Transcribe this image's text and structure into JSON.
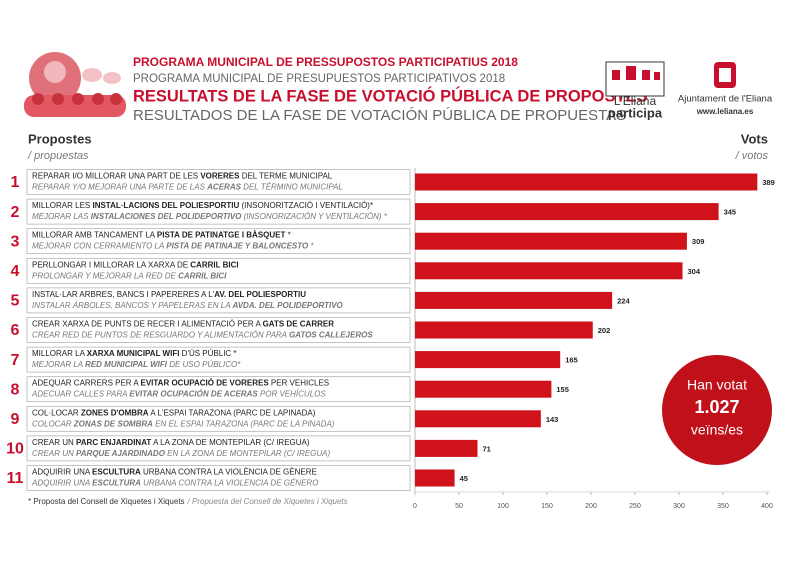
{
  "header": {
    "titles": [
      "PROGRAMA MUNICIPAL DE PRESSUPOSTOS PARTICIPATIUS 2018",
      "PROGRAMA MUNICIPAL DE PRESUPUESTOS PARTICIPATIVOS 2018",
      "RESULTATS DE LA FASE DE VOTACIÓ PÚBLICA DE PROPOSTES",
      "RESULTADOS DE LA FASE DE VOTACIÓN PÚBLICA DE PROPUESTAS"
    ],
    "logos": {
      "participa": [
        "L'Eliana",
        "participa"
      ],
      "ajuntament": "Ajuntament de l'Eliana",
      "web": "www.leliana.es"
    }
  },
  "columns": {
    "proposals": "Propostes",
    "proposals_es": "/ propuestas",
    "votes": "Vots",
    "votes_es": "/ votos"
  },
  "proposals": [
    {
      "number": 1,
      "ca": [
        "REPARAR I/O MILLORAR UNA PART DE LES ",
        "VORERES",
        " DEL TERME MUNICIPAL"
      ],
      "es": [
        "REPARAR Y/O MEJORAR UNA PARTE DE LAS ",
        "ACERAS",
        " DEL TÉRMINO MUNICIPAL"
      ]
    },
    {
      "number": 2,
      "ca": [
        "MILLORAR LES ",
        "INSTAL·LACIONS DEL POLIESPORTIU",
        " (INSONORITZACIÓ I VENTILACIÓ)*"
      ],
      "es": [
        "MEJORAR LAS ",
        "INSTALACIONES DEL POLIDEPORTIVO",
        " (INSONORIZACIÓN Y VENTILACIÓN) *"
      ]
    },
    {
      "number": 3,
      "ca": [
        "MILLORAR AMB TANCAMENT LA ",
        "PISTA DE PATINATGE I BÀSQUET",
        " *"
      ],
      "es": [
        "MEJORAR CON CERRAMIENTO LA ",
        "PISTA DE PATINAJE Y BALONCESTO",
        " *"
      ]
    },
    {
      "number": 4,
      "ca": [
        "PERLLONGAR I MILLORAR LA XARXA DE ",
        "CARRIL BICI"
      ],
      "es": [
        "PROLONGAR Y MEJORAR LA RED DE ",
        "CARRIL BICI"
      ]
    },
    {
      "number": 5,
      "ca": [
        "INSTAL·LAR ARBRES, BANCS I PAPERERES A L'",
        "AV. DEL POLIESPORTIU"
      ],
      "es": [
        "INSTALAR ÁRBOLES, BANCOS Y PAPELERAS EN LA ",
        "AVDA. DEL POLIDEPORTIVO"
      ]
    },
    {
      "number": 6,
      "ca": [
        "CREAR XARXA DE PUNTS DE RECER I ALIMENTACIÓ PER A ",
        "GATS DE CARRER"
      ],
      "es": [
        "CREAR RED DE PUNTOS DE RESGUARDO Y ALIMENTACIÓN PARA ",
        "GATOS CALLEJEROS"
      ]
    },
    {
      "number": 7,
      "ca": [
        "MILLORAR LA ",
        "XARXA MUNICIPAL WIFI",
        " D'ÚS PÚBLIC *"
      ],
      "es": [
        "MEJORAR LA ",
        "RED MUNICIPAL WIFI",
        " DE USO PÚBLICO*"
      ]
    },
    {
      "number": 8,
      "ca": [
        "ADEQUAR CARRERS PER A ",
        "EVITAR OCUPACIÓ DE VORERES",
        " PER VEHICLES"
      ],
      "es": [
        "ADECUAR CALLES PARA ",
        "EVITAR OCUPACIÓN DE ACERAS",
        " POR VEHÍCULOS"
      ]
    },
    {
      "number": 9,
      "ca": [
        "COL·LOCAR ",
        "ZONES D'OMBRA",
        " A L'ESPAI TARAZONA (PARC DE LAPINADA)"
      ],
      "es": [
        "COLOCAR ",
        "ZONAS DE SOMBRA",
        " EN EL ESPAI TARAZONA (PARC DE LA PINADA)"
      ]
    },
    {
      "number": 10,
      "ca": [
        "CREAR UN ",
        "PARC ENJARDINAT",
        " A LA ZONA DE MONTEPILAR (C/ IREGUA)"
      ],
      "es": [
        "CREAR UN ",
        "PARQUE AJARDINADO",
        " EN LA ZONA DE MONTEPILAR (C/ IREGUA)"
      ]
    },
    {
      "number": 11,
      "ca": [
        "ADQUIRIR UNA ",
        "ESCULTURA",
        " URBANA CONTRA LA VIOLÈNCIA DE GÈNERE"
      ],
      "es": [
        "ADQUIRIR UNA ",
        "ESCULTURA",
        " URBANA CONTRA LA VIOLENCIA DE GÉNERO"
      ]
    }
  ],
  "chart_data": {
    "type": "bar",
    "orientation": "horizontal",
    "values": [
      389,
      345,
      309,
      304,
      224,
      202,
      165,
      155,
      143,
      71,
      45
    ],
    "color": "#d0121b",
    "xlim": [
      0,
      400
    ],
    "xticks": [
      0,
      50,
      100,
      150,
      200,
      250,
      300,
      350,
      400
    ]
  },
  "summary": {
    "line1": "Han votat",
    "total": "1.027",
    "line2": "veïns/es"
  },
  "footnote": [
    "* Proposta del Consell de Xiquetes i Xiquets",
    "/ Propuesta del Consell de Xiquetes i Xiquets"
  ]
}
